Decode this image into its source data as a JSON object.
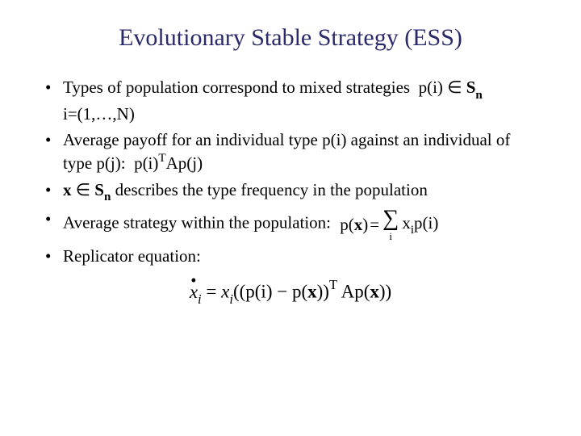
{
  "title": "Evolutionary Stable Strategy (ESS)",
  "colors": {
    "title": "#2a2a6a",
    "body": "#000000",
    "background": "#ffffff"
  },
  "typography": {
    "title_fontsize": 30,
    "body_fontsize": 21,
    "replicator_fontsize": 23,
    "font_family": "Times New Roman"
  },
  "bullets": {
    "b1_text": "Types of population correspond to mixed strategies",
    "b1_formula_p": "p(i)",
    "b1_in": "∈",
    "b1_S": "S",
    "b1_n": "n",
    "b1_line2": "i=(1,…,N)",
    "b2_text_a": "Average payoff for an individual type p(i) against an individual of type p(j):",
    "b2_formula_pi": "p(i)",
    "b2_T": "T",
    "b2_A": "A",
    "b2_formula_pj": "p(j)",
    "b3_x": "x",
    "b3_in": "∈",
    "b3_S": "S",
    "b3_n": "n",
    "b3_text": " describes the type frequency in the population",
    "b4_text": "Average strategy within the population:",
    "b4_lhs_p": "p(",
    "b4_lhs_x": "x",
    "b4_lhs_close": ")",
    "b4_eq": "=",
    "b4_sum_idx": "i",
    "b4_xi": "x",
    "b4_i": "i",
    "b4_pi": "p(i)",
    "b5_text": "Replicator equation:"
  },
  "replicator": {
    "dot": "•",
    "x": "x",
    "i1": "i",
    "eq": "=",
    "x2": "x",
    "i2": "i",
    "open": "((p(i)",
    "minus": "−",
    "p_open": "p(",
    "bx": "x",
    "p_close": "))",
    "T": "T",
    "A": "A",
    "p2_open": "p(",
    "bx2": "x",
    "p2_close": "))"
  }
}
